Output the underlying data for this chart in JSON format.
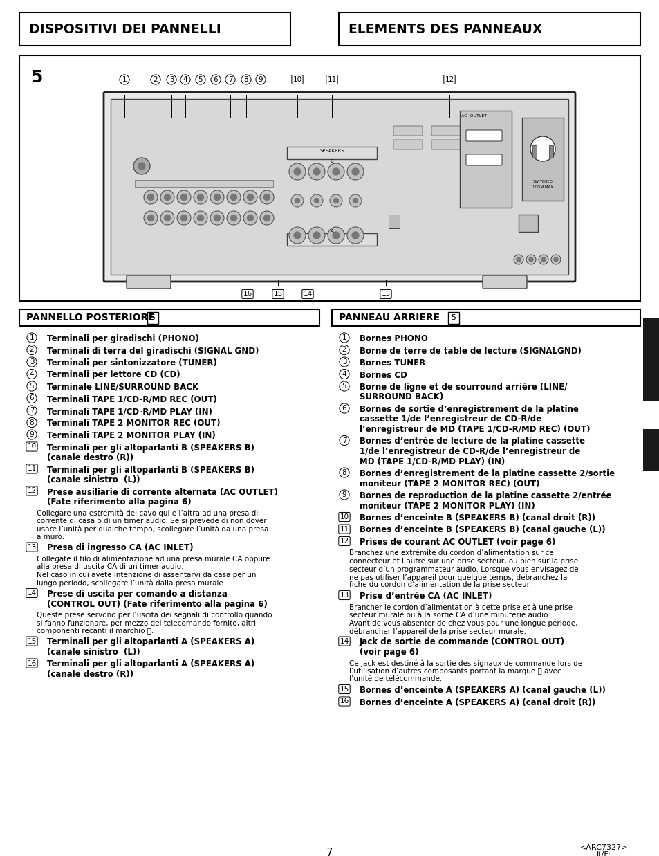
{
  "bg_color": "#ffffff",
  "header_left_title": "DISPOSITIVI DEI PANNELLI",
  "header_right_title": "ELEMENTS DES PANNEAUX",
  "panel_number": "5",
  "left_section_title": "PANNELLO POSTERIORE",
  "left_section_number": "5",
  "right_section_title": "PANNEAU ARRIERE",
  "right_section_number": "5",
  "left_items": [
    {
      "num": "1",
      "text": "Terminali per giradischi (PHONO)",
      "bold": true
    },
    {
      "num": "2",
      "text": "Terminali di terra del giradischi (SIGNAL GND)",
      "bold": true
    },
    {
      "num": "3",
      "text": "Terminali per sintonizzatore (TUNER)",
      "bold": true
    },
    {
      "num": "4",
      "text": "Terminali per lettore CD (CD)",
      "bold": true
    },
    {
      "num": "5",
      "text": "Terminale LINE/SURROUND BACK",
      "bold": true
    },
    {
      "num": "6",
      "text": "Terminali TAPE 1/CD-R/MD REC (OUT)",
      "bold": true
    },
    {
      "num": "7",
      "text": "Terminali TAPE 1/CD-R/MD PLAY (IN)",
      "bold": true
    },
    {
      "num": "8",
      "text": "Terminali TAPE 2 MONITOR REC (OUT)",
      "bold": true
    },
    {
      "num": "9",
      "text": "Terminali TAPE 2 MONITOR PLAY (IN)",
      "bold": true
    },
    {
      "num": "10",
      "text": "Terminali per gli altoparlanti B (SPEAKERS B)\n(canale destro (R))",
      "bold": true
    },
    {
      "num": "11",
      "text": "Terminali per gli altoparlanti B (SPEAKERS B)\n(canale sinistro  (L))",
      "bold": true
    },
    {
      "num": "12",
      "text": "Prese ausiliarie di corrente alternata (AC OUTLET)\n(Fate riferimento alla pagina 6)",
      "bold": true
    },
    {
      "num": "",
      "text": "Collegare una estremità del cavo qui e l’altra ad una presa di\ncorrente di casa o di un timer audio. Se si prevede di non dover\nusare l’unità per qualche tempo, scollegare l’unità da una presa\na muro.",
      "bold": false
    },
    {
      "num": "13",
      "text": "Presa di ingresso CA (AC INLET)",
      "bold": true
    },
    {
      "num": "",
      "text": "Collegate il filo di alimentazione ad una presa murale CA oppure\nalla presa di uscita CA di un timer audio.\nNel caso in cui avete intenzione di assentarvi da casa per un\nlungo periodo, scollegare l’unità dalla presa murale.",
      "bold": false
    },
    {
      "num": "14",
      "text": "Prese di uscita per comando a distanza\n(CONTROL OUT) (Fate riferimento alla pagina 6)",
      "bold": true
    },
    {
      "num": "",
      "text": "Queste prese servono per l’uscita dei segnali di controllo quando\nsi fanno funzionare, per mezzo del telecomando fornito, altri\ncomponenti recanti il marchio ⓢ.",
      "bold": false
    },
    {
      "num": "15",
      "text": "Terminali per gli altoparlanti A (SPEAKERS A)\n(canale sinistro  (L))",
      "bold": true
    },
    {
      "num": "16",
      "text": "Terminali per gli altoparlanti A (SPEAKERS A)\n(canale destro (R))",
      "bold": true
    }
  ],
  "right_items": [
    {
      "num": "1",
      "text": "Bornes PHONO",
      "bold": true
    },
    {
      "num": "2",
      "text": "Borne de terre de table de lecture (SIGNALGND)",
      "bold": true
    },
    {
      "num": "3",
      "text": "Bornes TUNER",
      "bold": true
    },
    {
      "num": "4",
      "text": "Bornes CD",
      "bold": true
    },
    {
      "num": "5",
      "text": "Borne de ligne et de sourround arrière (LINE/\nSURROUND BACK)",
      "bold": true
    },
    {
      "num": "6",
      "text": "Bornes de sortie d’enregistrement de la platine\ncassette 1/de l’enregistreur de CD-R/de\nl’enregistreur de MD (TAPE 1/CD-R/MD REC) (OUT)",
      "bold": true
    },
    {
      "num": "7",
      "text": "Bornes d’entrée de lecture de la platine cassette\n1/de l’enregistreur de CD-R/de l’enregistreur de\nMD (TAPE 1/CD-R/MD PLAY) (IN)",
      "bold": true
    },
    {
      "num": "8",
      "text": "Bornes d’enregistrement de la platine cassette 2/sortie\nmoniteur (TAPE 2 MONITOR REC) (OUT)",
      "bold": true
    },
    {
      "num": "9",
      "text": "Bornes de reproduction de la platine cassette 2/entrée\nmoniteur (TAPE 2 MONITOR PLAY) (IN)",
      "bold": true
    },
    {
      "num": "10",
      "text": "Bornes d’enceinte B (SPEAKERS B) (canal droit (R))",
      "bold": true
    },
    {
      "num": "11",
      "text": "Bornes d’enceinte B (SPEAKERS B) (canal gauche (L))",
      "bold": true
    },
    {
      "num": "12",
      "text": "Prises de courant AC OUTLET (voir page 6)",
      "bold": true
    },
    {
      "num": "",
      "text": "Branchez une extrémité du cordon d’alimentation sur ce\nconnecteur et l’autre sur une prise secteur, ou bien sur la prise\nsecteur d’un programmateur audio. Lorsque vous envisagez de\nne pas utiliser l’appareil pour quelque temps, débranchez la\nfiche du cordon d’alimentation de la prise secteur.",
      "bold": false
    },
    {
      "num": "13",
      "text": "Prise d’entrée CA (AC INLET)",
      "bold": true
    },
    {
      "num": "",
      "text": "Brancher le cordon d’alimentation à cette prise et à une prise\nsecteur murale ou à la sortie CA d’une minuterie audio.\nAvant de vous absenter de chez vous pour une longue période,\ndébrancher l’appareil de la prise secteur murale.",
      "bold": false
    },
    {
      "num": "14",
      "text": "Jack de sortie de commande (CONTROL OUT)\n(voir page 6)",
      "bold": true
    },
    {
      "num": "",
      "text": "Ce jack est destiné à la sortie des signaux de commande lors de\nl’utilisation d’autres composants portant la marque ⓢ avec\nl’unité de télécommande.",
      "bold": false
    },
    {
      "num": "15",
      "text": "Bornes d’enceinte A (SPEAKERS A) (canal gauche (L))",
      "bold": true
    },
    {
      "num": "16",
      "text": "Bornes d’enceinte A (SPEAKERS A) (canal droit (R))",
      "bold": true
    }
  ],
  "page_number": "7",
  "page_code": "<ARC7327>",
  "page_lang": "It/Fr",
  "right_bar_color": "#1a1a1a"
}
